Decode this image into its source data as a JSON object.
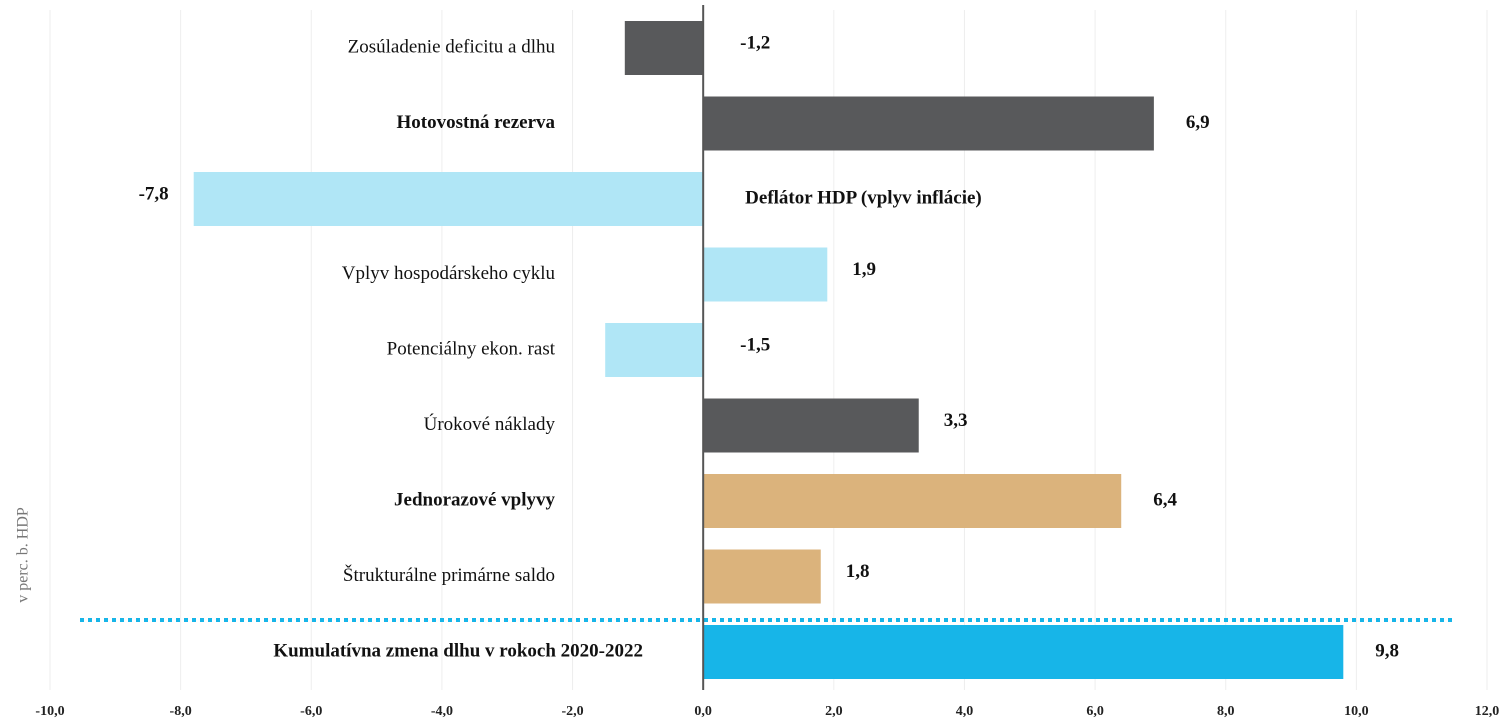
{
  "chart_data": {
    "type": "bar",
    "orientation": "horizontal",
    "y_axis_label": "v perc. b. HDP",
    "categories": [
      "Zosúladenie deficitu a dlhu",
      "Hotovostná rezerva",
      "Deflátor HDP (vplyv inflácie)",
      "Vplyv hospodárskeho cyklu",
      "Potenciálny ekon. rast",
      "Úrokové náklady",
      "Jednorazové vplyvy",
      "Štrukturálne primárne saldo",
      "Kumulatívna zmena dlhu v rokoch 2020-2022"
    ],
    "values": [
      -1.2,
      6.9,
      -7.8,
      1.9,
      -1.5,
      3.3,
      6.4,
      1.8,
      9.8
    ],
    "value_labels": [
      "-1,2",
      "6,9",
      "-7,8",
      "1,9",
      "-1,5",
      "3,3",
      "6,4",
      "1,8",
      "9,8"
    ],
    "colors": [
      "#58595b",
      "#58595b",
      "#b0e6f6",
      "#b0e6f6",
      "#b0e6f6",
      "#58595b",
      "#dbb37c",
      "#dbb37c",
      "#17b5e8"
    ],
    "bold": [
      false,
      true,
      true,
      false,
      false,
      false,
      true,
      false,
      true
    ],
    "xlim": [
      -10,
      12
    ],
    "xticks": [
      {
        "value": -10,
        "label": "-10,0"
      },
      {
        "value": -8,
        "label": "-8,0"
      },
      {
        "value": -6,
        "label": "-6,0"
      },
      {
        "value": -4,
        "label": "-4,0"
      },
      {
        "value": -2,
        "label": "-2,0"
      },
      {
        "value": 0,
        "label": "0,0"
      },
      {
        "value": 2,
        "label": "2,0"
      },
      {
        "value": 4,
        "label": "4,0"
      },
      {
        "value": 6,
        "label": "6,0"
      },
      {
        "value": 8,
        "label": "8,0"
      },
      {
        "value": 10,
        "label": "10,0"
      },
      {
        "value": 12,
        "label": "12,0"
      }
    ],
    "grid": true
  }
}
